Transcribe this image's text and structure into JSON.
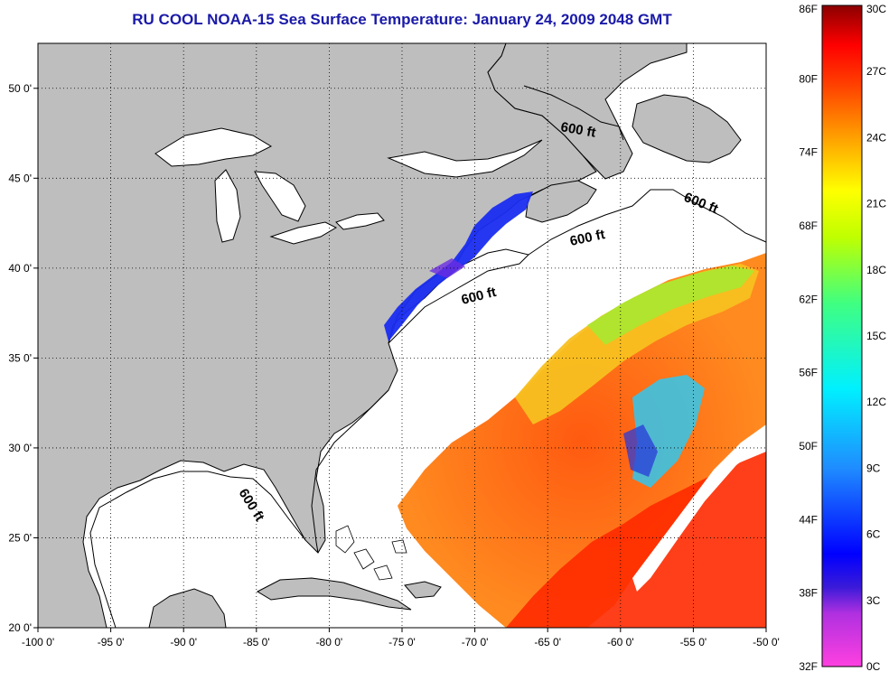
{
  "title": "RU COOL  NOAA-15  Sea Surface Temperature:  January 24, 2009 2048 GMT",
  "map": {
    "lon_range": [
      -100,
      -50
    ],
    "lat_range": [
      20,
      52.5
    ],
    "lon_ticks": [
      "-100 0'",
      "-95 0'",
      "-90 0'",
      "-85 0'",
      "-80 0'",
      "-75 0'",
      "-70 0'",
      "-65 0'",
      "-60 0'",
      "-55 0'",
      "-50 0'"
    ],
    "lat_ticks": [
      "50 0'",
      "45 0'",
      "40 0'",
      "35 0'",
      "30 0'",
      "25 0'",
      "20 0'"
    ],
    "contour_labels": [
      "600 ft",
      "600 ft",
      "600 ft",
      "600 ft",
      "600 ft"
    ],
    "colors": {
      "land": "#bebebe",
      "water": "#ffffff",
      "frame": "#000000"
    }
  },
  "colorbar": {
    "fahrenheit_labels": [
      "86F",
      "80F",
      "74F",
      "68F",
      "62F",
      "56F",
      "50F",
      "44F",
      "38F",
      "32F"
    ],
    "celsius_labels": [
      "30C",
      "27C",
      "24C",
      "21C",
      "18C",
      "15C",
      "12C",
      "9C",
      "6C",
      "3C",
      "0C"
    ],
    "range_c": [
      0,
      30
    ]
  }
}
